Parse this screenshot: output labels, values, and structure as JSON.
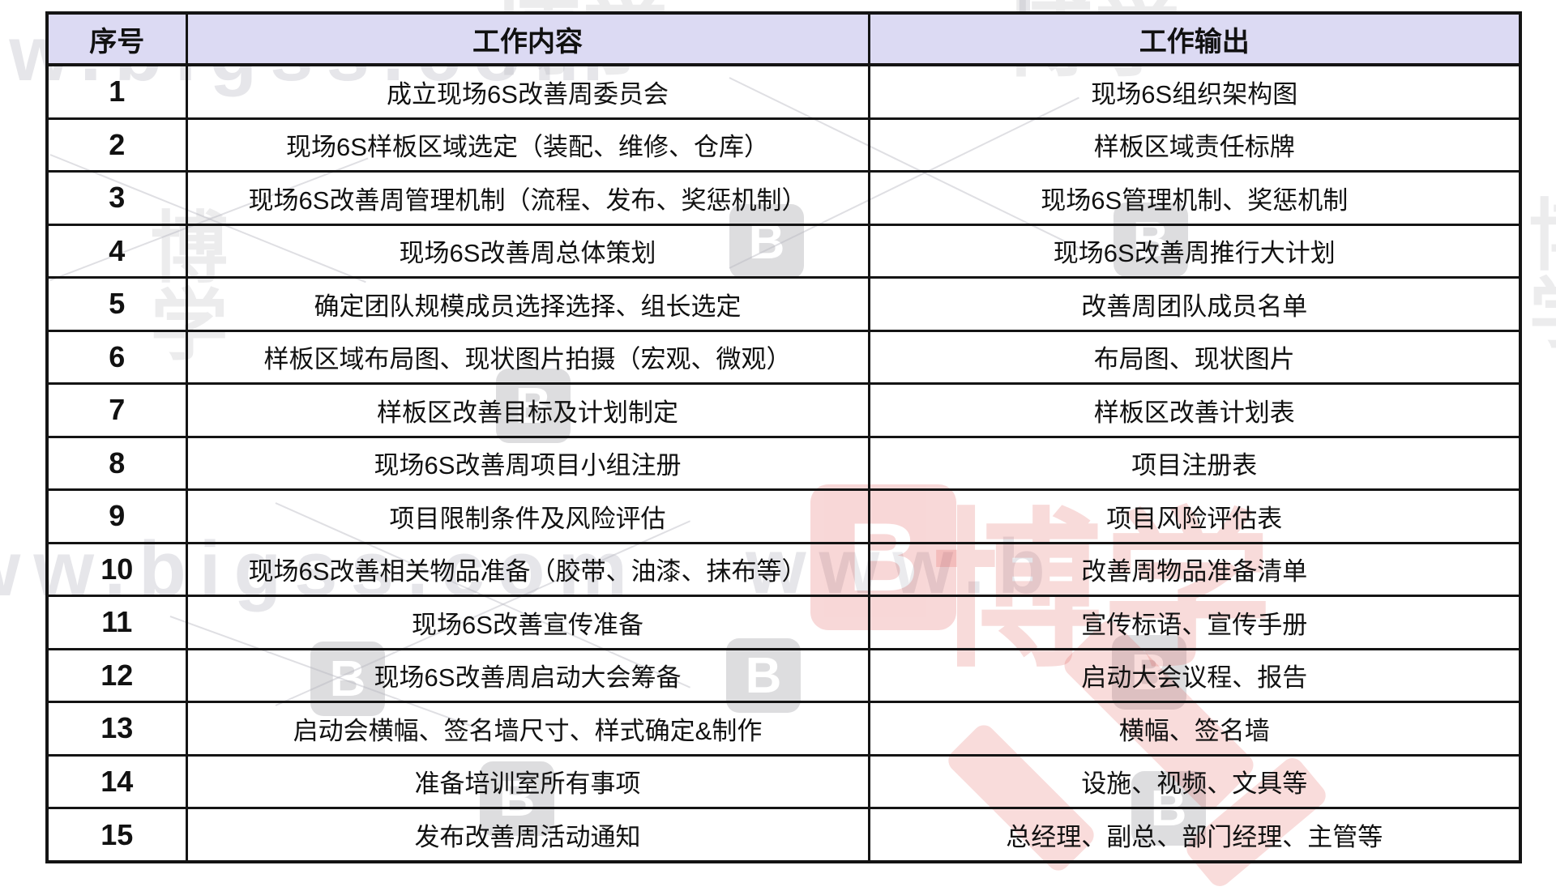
{
  "watermark": {
    "url_text": "www.bigss.com",
    "url_fragment": "www.b",
    "logo_letter": "B",
    "brand_text": "博学",
    "gray_color": "#b9b9c2",
    "red_color": "#e04f4c"
  },
  "table": {
    "header_bg": "#dcdaf3",
    "border_color": "#141414",
    "headers": [
      "序号",
      "工作内容",
      "工作输出"
    ],
    "rows": [
      {
        "no": "1",
        "content": "成立现场6S改善周委员会",
        "output": "现场6S组织架构图"
      },
      {
        "no": "2",
        "content": "现场6S样板区域选定（装配、维修、仓库）",
        "output": "样板区域责任标牌"
      },
      {
        "no": "3",
        "content": "现场6S改善周管理机制（流程、发布、奖惩机制）",
        "output": "现场6S管理机制、奖惩机制"
      },
      {
        "no": "4",
        "content": "现场6S改善周总体策划",
        "output": "现场6S改善周推行大计划"
      },
      {
        "no": "5",
        "content": "确定团队规模成员选择选择、组长选定",
        "output": "改善周团队成员名单"
      },
      {
        "no": "6",
        "content": "样板区域布局图、现状图片拍摄（宏观、微观）",
        "output": "布局图、现状图片"
      },
      {
        "no": "7",
        "content": "样板区改善目标及计划制定",
        "output": "样板区改善计划表"
      },
      {
        "no": "8",
        "content": "现场6S改善周项目小组注册",
        "output": "项目注册表"
      },
      {
        "no": "9",
        "content": "项目限制条件及风险评估",
        "output": "项目风险评估表"
      },
      {
        "no": "10",
        "content": "现场6S改善相关物品准备（胶带、油漆、抹布等）",
        "output": "改善周物品准备清单"
      },
      {
        "no": "11",
        "content": "现场6S改善宣传准备",
        "output": "宣传标语、宣传手册"
      },
      {
        "no": "12",
        "content": "现场6S改善周启动大会筹备",
        "output": "启动大会议程、报告"
      },
      {
        "no": "13",
        "content": "启动会横幅、签名墙尺寸、样式确定&制作",
        "output": "横幅、签名墙"
      },
      {
        "no": "14",
        "content": "准备培训室所有事项",
        "output": "设施、视频、文具等"
      },
      {
        "no": "15",
        "content": "发布改善周活动通知",
        "output": "总经理、副总、部门经理、主管等"
      }
    ]
  }
}
